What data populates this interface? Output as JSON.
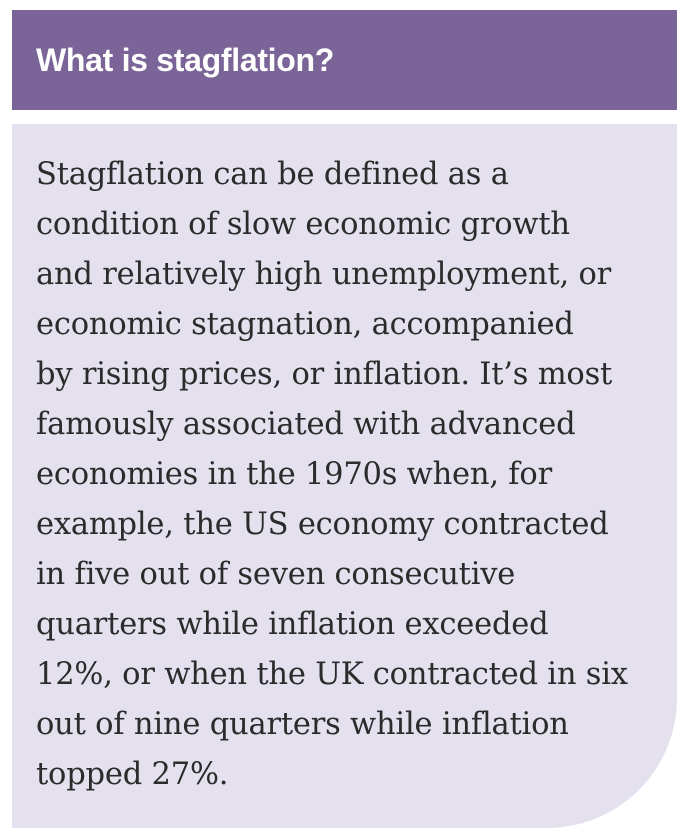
{
  "header": {
    "title": "What is stagflation?"
  },
  "body": {
    "lines": [
      "Stagflation can be defined as a",
      "condition of slow economic growth",
      "and relatively high unemployment, or",
      "economic stagnation, accompanied",
      "by rising prices, or inflation. It’s most",
      "famously associated with advanced",
      "economies in the 1970s when, for",
      "example, the US economy contracted",
      "in five out of seven consecutive",
      "quarters while inflation exceeded",
      "12%, or when the UK contracted in six",
      "out of nine quarters while inflation",
      "topped 27%."
    ]
  },
  "colors": {
    "header_background": "#7b6497",
    "body_background": "#e4e0ee",
    "header_text": "#ffffff",
    "body_text": "#2b2b2b"
  }
}
